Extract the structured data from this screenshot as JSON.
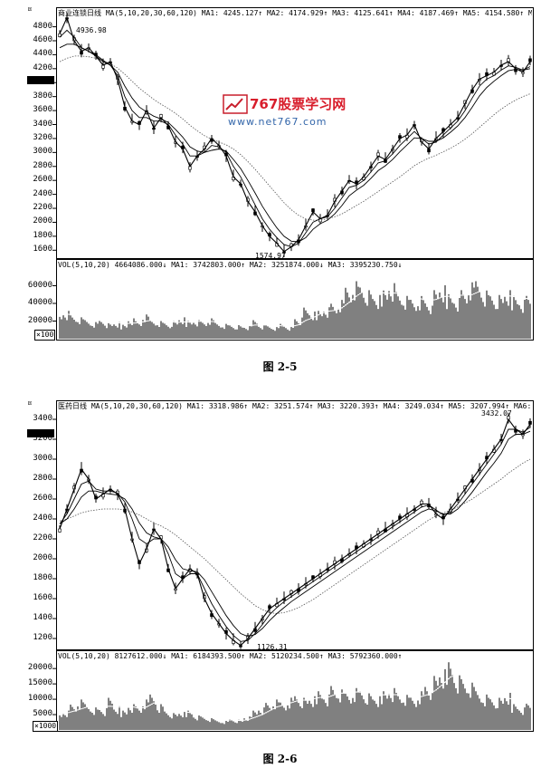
{
  "watermark": {
    "title": "767股票学习网",
    "url": "www.net767.com",
    "accent": "#d81e2c",
    "url_color": "#3366aa"
  },
  "charts": [
    {
      "caption": "图 2-5",
      "header": "商业连锁日线 MA(5,10,20,30,60,120) MA1: 4245.127↑ MA2: 4174.929↑ MA3: 4125.641↑ MA4: 4187.469↑ MA5: 4154.580↑ MA6: 3838.355↑",
      "vol_header": "VOL(5,10,20) 4664086.000↓ MA1: 3742803.000↑ MA2: 3251874.000↓ MA3: 3395230.750↓",
      "unit_badge": "×100",
      "high_label": "4936.98",
      "low_label": "1574.97"
    },
    {
      "caption": "图 2-6",
      "header": "医药日线 MA(5,10,20,30,60,120) MA1: 3318.986↑ MA2: 3251.574↑ MA3: 3220.393↑ MA4: 3249.034↑ MA5: 3207.994↑ MA6: 3000.188↑",
      "vol_header": "VOL(5,10,20) 8127612.000↓ MA1: 6184393.500↑ MA2: 5120234.500↑ MA3: 5792360.000↑",
      "unit_badge": "×1000",
      "high_label": "3432.07",
      "low_label": "1126.31"
    }
  ],
  "chart_data": [
    {
      "type": "line",
      "title": "商业连锁日线",
      "price_ticks": [
        4800,
        4600,
        4400,
        4200,
        4000,
        3800,
        3600,
        3400,
        3200,
        3000,
        2800,
        2600,
        2400,
        2200,
        2000,
        1800,
        1600
      ],
      "ylim": [
        1500,
        4950
      ],
      "volume_ticks": [
        60000,
        40000,
        20000
      ],
      "vol_ylim": [
        0,
        80000
      ],
      "price": [
        4700,
        4930,
        4600,
        4450,
        4500,
        4380,
        4250,
        4300,
        4050,
        3650,
        3450,
        3400,
        3600,
        3350,
        3500,
        3380,
        3150,
        3050,
        2800,
        2950,
        3050,
        3200,
        3100,
        2950,
        2650,
        2550,
        2300,
        2150,
        1950,
        1800,
        1700,
        1580,
        1650,
        1750,
        1950,
        2150,
        2050,
        2100,
        2300,
        2450,
        2600,
        2550,
        2650,
        2800,
        2950,
        2900,
        3050,
        3200,
        3250,
        3400,
        3150,
        3050,
        3200,
        3300,
        3400,
        3500,
        3700,
        3900,
        4050,
        4100,
        4150,
        4250,
        4300,
        4200,
        4150,
        4300
      ],
      "ma_fast": [
        4650,
        4750,
        4650,
        4500,
        4450,
        4380,
        4300,
        4250,
        4100,
        3800,
        3600,
        3500,
        3500,
        3450,
        3450,
        3400,
        3250,
        3120,
        2950,
        2950,
        3000,
        3100,
        3080,
        3000,
        2800,
        2650,
        2450,
        2250,
        2050,
        1900,
        1780,
        1680,
        1650,
        1700,
        1850,
        2000,
        2050,
        2080,
        2200,
        2350,
        2500,
        2530,
        2600,
        2720,
        2850,
        2880,
        2980,
        3100,
        3200,
        3300,
        3200,
        3120,
        3150,
        3250,
        3350,
        3450,
        3600,
        3780,
        3950,
        4050,
        4100,
        4180,
        4240,
        4220,
        4180,
        4230
      ],
      "ma_mid": [
        4500,
        4550,
        4550,
        4500,
        4450,
        4400,
        4320,
        4250,
        4150,
        3950,
        3780,
        3650,
        3580,
        3520,
        3480,
        3430,
        3330,
        3220,
        3080,
        3020,
        3000,
        3030,
        3050,
        3020,
        2900,
        2770,
        2600,
        2420,
        2230,
        2070,
        1920,
        1800,
        1730,
        1720,
        1780,
        1900,
        1980,
        2030,
        2120,
        2240,
        2380,
        2460,
        2530,
        2630,
        2740,
        2810,
        2900,
        3010,
        3110,
        3210,
        3200,
        3160,
        3160,
        3210,
        3290,
        3380,
        3500,
        3650,
        3810,
        3930,
        4020,
        4100,
        4170,
        4190,
        4180,
        4200
      ],
      "ma_slow": [
        4300,
        4350,
        4380,
        4380,
        4370,
        4350,
        4310,
        4270,
        4210,
        4120,
        4020,
        3920,
        3840,
        3760,
        3690,
        3630,
        3560,
        3480,
        3390,
        3310,
        3240,
        3190,
        3150,
        3110,
        3050,
        2970,
        2870,
        2760,
        2640,
        2520,
        2400,
        2280,
        2180,
        2100,
        2050,
        2030,
        2030,
        2050,
        2080,
        2120,
        2180,
        2240,
        2300,
        2370,
        2440,
        2510,
        2580,
        2650,
        2730,
        2810,
        2870,
        2920,
        2960,
        3010,
        3060,
        3120,
        3190,
        3270,
        3360,
        3450,
        3540,
        3620,
        3690,
        3750,
        3800,
        3840
      ],
      "volume": [
        26000,
        30000,
        24000,
        22000,
        20000,
        18000,
        21000,
        16000,
        17000,
        15000,
        22000,
        18000,
        25000,
        20000,
        19000,
        17000,
        18000,
        22000,
        19000,
        20000,
        18000,
        21000,
        17000,
        16000,
        15000,
        14000,
        13000,
        20000,
        15000,
        14000,
        12000,
        16000,
        13000,
        22000,
        32000,
        28000,
        30000,
        34000,
        36000,
        40000,
        55000,
        62000,
        58000,
        50000,
        45000,
        52000,
        60000,
        48000,
        44000,
        42000,
        46000,
        40000,
        50000,
        55000,
        48000,
        44000,
        50000,
        58000,
        62000,
        52000,
        48000,
        45000,
        50000,
        46000,
        42000,
        44000
      ],
      "unit_label": "×100",
      "annotations": [
        "4936.98",
        "1574.97"
      ]
    },
    {
      "type": "line",
      "title": "医药日线",
      "price_ticks": [
        3400,
        3200,
        3000,
        2800,
        2600,
        2400,
        2200,
        2000,
        1800,
        1600,
        1400,
        1200
      ],
      "ylim": [
        1100,
        3500
      ],
      "volume_ticks": [
        20000,
        15000,
        10000,
        5000
      ],
      "vol_ylim": [
        0,
        23000
      ],
      "price": [
        2300,
        2500,
        2700,
        2900,
        2800,
        2600,
        2650,
        2700,
        2650,
        2500,
        2200,
        1950,
        2100,
        2300,
        2200,
        1900,
        1700,
        1800,
        1900,
        1850,
        1600,
        1450,
        1350,
        1250,
        1180,
        1130,
        1200,
        1300,
        1400,
        1500,
        1550,
        1600,
        1650,
        1700,
        1750,
        1800,
        1850,
        1900,
        1950,
        2000,
        2050,
        2100,
        2150,
        2200,
        2250,
        2300,
        2350,
        2400,
        2450,
        2500,
        2550,
        2550,
        2450,
        2400,
        2500,
        2600,
        2700,
        2800,
        2900,
        3000,
        3100,
        3200,
        3400,
        3300,
        3250,
        3350
      ],
      "ma_fast": [
        2350,
        2450,
        2600,
        2750,
        2780,
        2700,
        2680,
        2680,
        2660,
        2570,
        2400,
        2200,
        2150,
        2200,
        2200,
        2050,
        1850,
        1800,
        1850,
        1850,
        1700,
        1550,
        1430,
        1320,
        1230,
        1170,
        1180,
        1250,
        1340,
        1440,
        1510,
        1570,
        1620,
        1670,
        1720,
        1770,
        1820,
        1870,
        1920,
        1970,
        2020,
        2070,
        2120,
        2170,
        2220,
        2270,
        2320,
        2370,
        2420,
        2470,
        2520,
        2540,
        2490,
        2440,
        2470,
        2550,
        2650,
        2750,
        2850,
        2950,
        3050,
        3150,
        3300,
        3300,
        3270,
        3320
      ],
      "ma_mid": [
        2350,
        2400,
        2500,
        2620,
        2680,
        2680,
        2660,
        2650,
        2640,
        2600,
        2500,
        2360,
        2260,
        2220,
        2200,
        2120,
        1990,
        1900,
        1880,
        1870,
        1790,
        1670,
        1550,
        1430,
        1330,
        1250,
        1220,
        1240,
        1300,
        1380,
        1450,
        1510,
        1570,
        1620,
        1670,
        1720,
        1770,
        1820,
        1870,
        1920,
        1970,
        2020,
        2070,
        2120,
        2170,
        2220,
        2270,
        2320,
        2370,
        2420,
        2470,
        2500,
        2480,
        2450,
        2450,
        2500,
        2580,
        2670,
        2770,
        2870,
        2960,
        3060,
        3200,
        3250,
        3250,
        3280
      ],
      "ma_slow": [
        2380,
        2400,
        2430,
        2460,
        2480,
        2490,
        2500,
        2500,
        2500,
        2490,
        2470,
        2440,
        2400,
        2360,
        2330,
        2290,
        2240,
        2180,
        2120,
        2060,
        2000,
        1930,
        1860,
        1790,
        1720,
        1650,
        1590,
        1530,
        1490,
        1460,
        1450,
        1460,
        1480,
        1510,
        1550,
        1590,
        1640,
        1690,
        1740,
        1790,
        1840,
        1890,
        1940,
        1990,
        2040,
        2090,
        2140,
        2190,
        2240,
        2290,
        2340,
        2390,
        2430,
        2460,
        2490,
        2520,
        2560,
        2600,
        2650,
        2700,
        2750,
        2800,
        2860,
        2910,
        2960,
        3000
      ],
      "volume": [
        5000,
        6000,
        7500,
        9000,
        8000,
        7000,
        6500,
        9500,
        7000,
        6000,
        8000,
        7000,
        9000,
        11000,
        8000,
        6000,
        5000,
        5500,
        6000,
        4500,
        4000,
        3500,
        3000,
        2800,
        3500,
        3000,
        4000,
        6000,
        7000,
        8000,
        9000,
        8500,
        10000,
        11000,
        9500,
        10000,
        12000,
        11000,
        13000,
        12000,
        11500,
        13000,
        12500,
        11000,
        10000,
        12000,
        13000,
        11000,
        10500,
        10000,
        12000,
        14000,
        16000,
        18000,
        21000,
        17000,
        15000,
        14000,
        12000,
        11000,
        10000,
        9500,
        11000,
        8000,
        7000,
        8000
      ],
      "unit_label": "×1000",
      "annotations": [
        "3432.07",
        "1126.31"
      ]
    }
  ]
}
